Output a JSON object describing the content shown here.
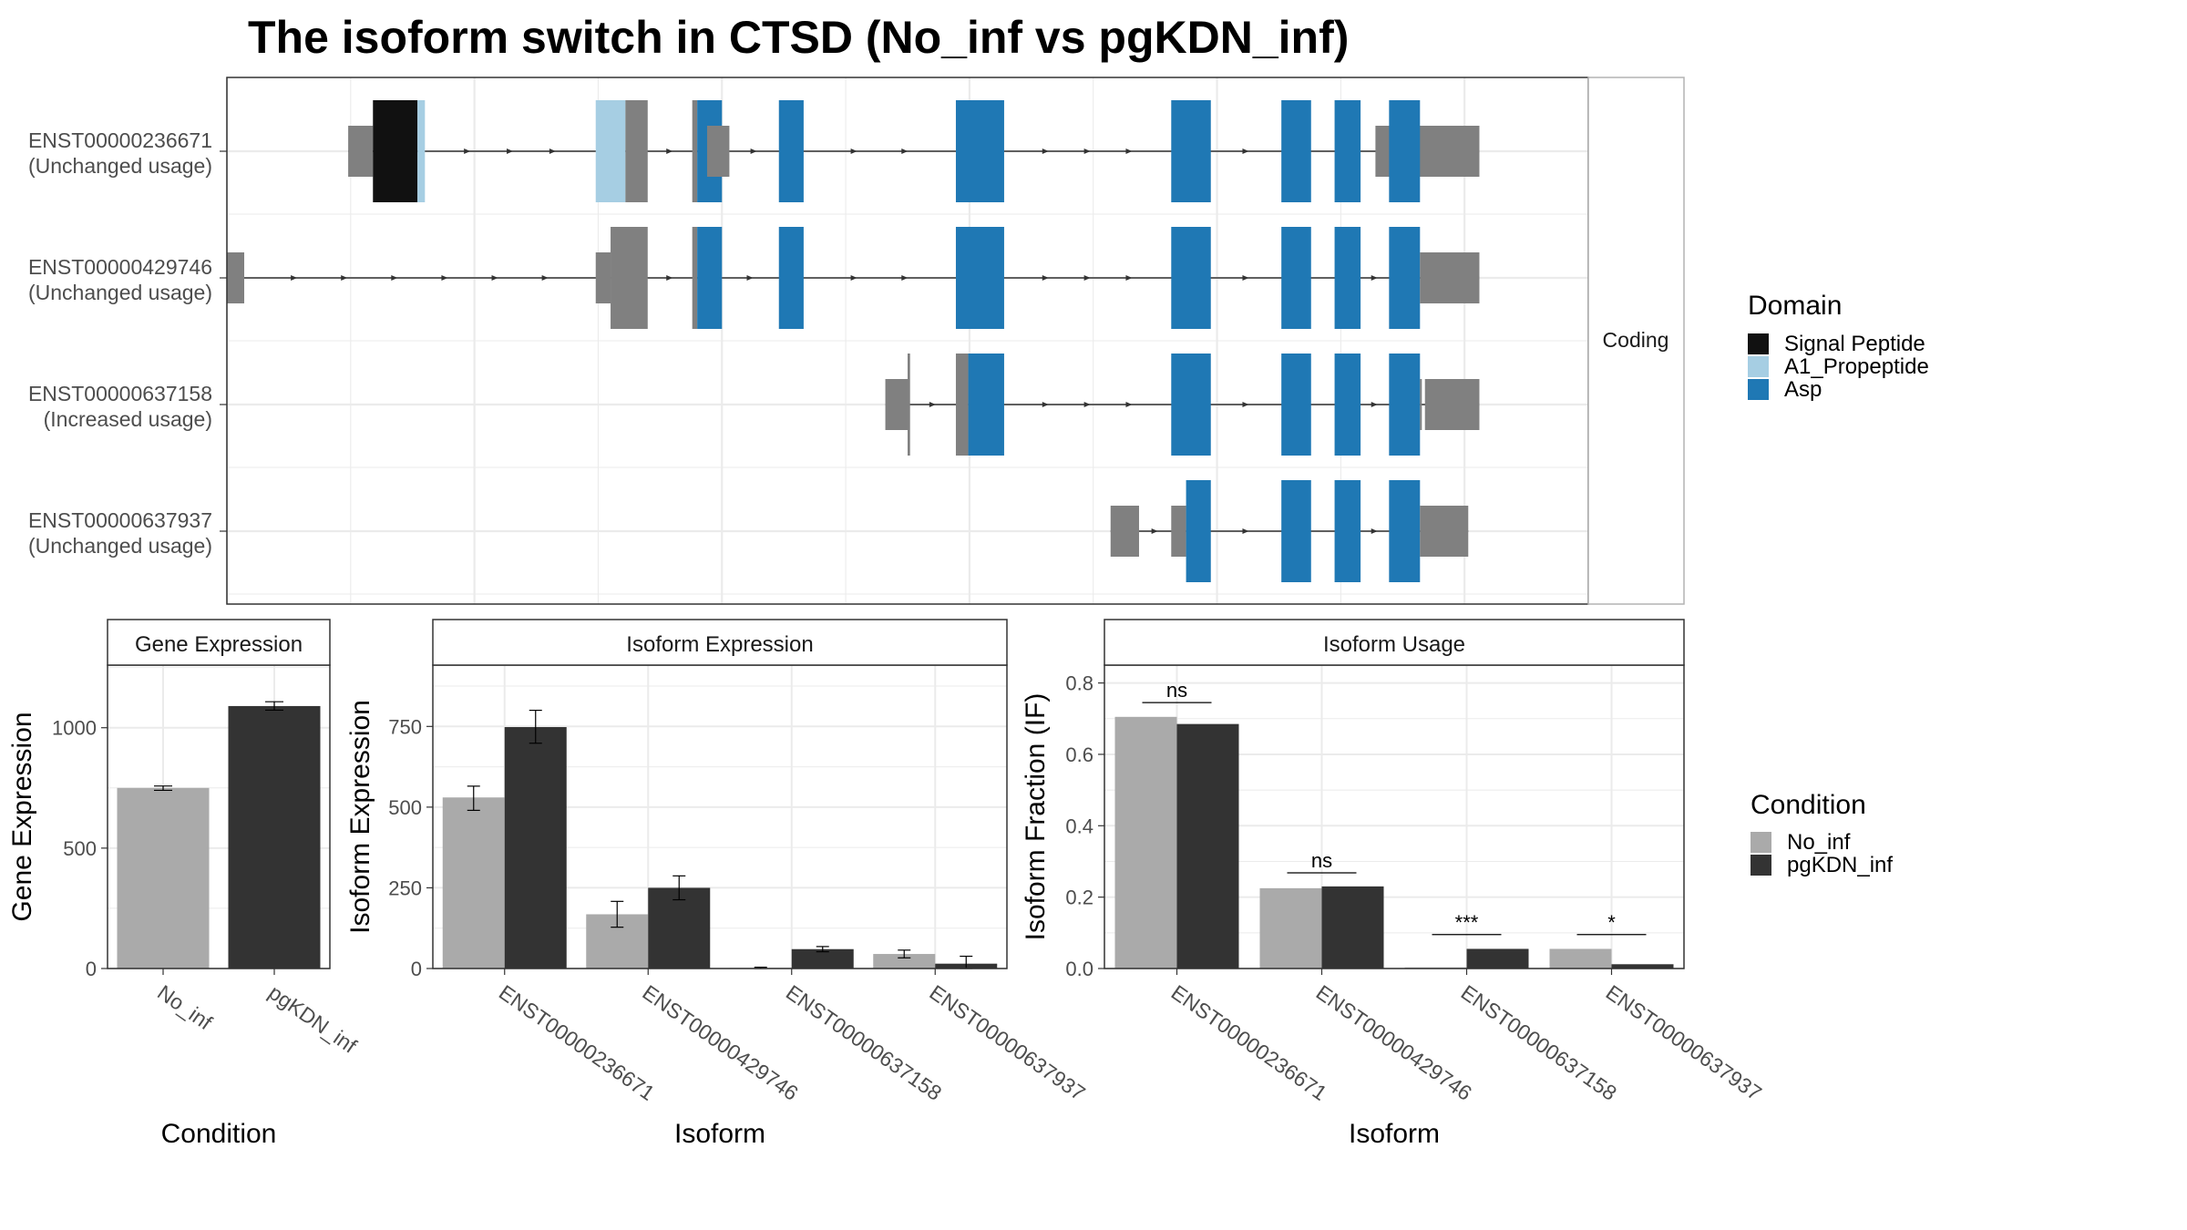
{
  "title": "The isoform switch in CTSD (No_inf vs pgKDN_inf)",
  "colors": {
    "utr": "#808080",
    "no_inf": "#aaaaaa",
    "pgkdn_inf": "#333333",
    "panel_border": "#333333",
    "strip_border": "#b3b3b3",
    "grid": "#ebebeb"
  },
  "structure": {
    "strip_label": "Coding",
    "xlim": [
      0,
      1100
    ],
    "transcripts": [
      {
        "id": "ENST00000236671",
        "status": "(Unchanged usage)",
        "utr": [
          [
            98,
            118
          ],
          [
            388,
            406
          ],
          [
            928,
            1012
          ]
        ],
        "coding": [
          [
            118,
            154,
            "Signal Peptide"
          ],
          [
            154,
            160,
            "A1_Propeptide"
          ],
          [
            298,
            322,
            "A1_Propeptide"
          ],
          [
            322,
            340,
            "utr"
          ],
          [
            376,
            380,
            "utr"
          ],
          [
            380,
            400,
            "Asp"
          ],
          [
            446,
            466,
            "Asp"
          ],
          [
            589,
            628,
            "Asp"
          ],
          [
            763,
            795,
            "Asp"
          ],
          [
            852,
            876,
            "Asp"
          ],
          [
            895,
            916,
            "Asp"
          ],
          [
            939,
            964,
            "Asp"
          ]
        ]
      },
      {
        "id": "ENST00000429746",
        "status": "(Unchanged usage)",
        "utr": [
          [
            0,
            14
          ],
          [
            298,
            310
          ],
          [
            964,
            1012
          ]
        ],
        "coding": [
          [
            310,
            340,
            "utr"
          ],
          [
            376,
            380,
            "utr"
          ],
          [
            380,
            400,
            "Asp"
          ],
          [
            446,
            466,
            "Asp"
          ],
          [
            589,
            628,
            "Asp"
          ],
          [
            763,
            795,
            "Asp"
          ],
          [
            852,
            876,
            "Asp"
          ],
          [
            895,
            916,
            "Asp"
          ],
          [
            939,
            964,
            "Asp"
          ]
        ]
      },
      {
        "id": "ENST00000637158",
        "status": "(Increased usage)",
        "utr": [
          [
            532,
            550
          ],
          [
            964,
            965
          ],
          [
            968,
            1012
          ]
        ],
        "coding": [
          [
            550,
            552,
            "utr"
          ],
          [
            589,
            599,
            "utr"
          ],
          [
            599,
            628,
            "Asp"
          ],
          [
            763,
            795,
            "Asp"
          ],
          [
            852,
            876,
            "Asp"
          ],
          [
            895,
            916,
            "Asp"
          ],
          [
            939,
            964,
            "Asp"
          ]
        ]
      },
      {
        "id": "ENST00000637937",
        "status": "(Unchanged usage)",
        "utr": [
          [
            714,
            737
          ],
          [
            763,
            775
          ],
          [
            964,
            1003
          ]
        ],
        "coding": [
          [
            775,
            795,
            "Asp"
          ],
          [
            852,
            876,
            "Asp"
          ],
          [
            895,
            916,
            "Asp"
          ],
          [
            939,
            964,
            "Asp"
          ]
        ]
      }
    ]
  },
  "domain_legend": {
    "title": "Domain",
    "items": [
      {
        "name": "Signal Peptide",
        "color": "#111111"
      },
      {
        "name": "A1_Propeptide",
        "color": "#a6cee3"
      },
      {
        "name": "Asp",
        "color": "#1f78b4"
      }
    ]
  },
  "condition_legend": {
    "title": "Condition",
    "items": [
      {
        "name": "No_inf",
        "color": "#aaaaaa"
      },
      {
        "name": "pgKDN_inf",
        "color": "#333333"
      }
    ]
  },
  "chart_data": [
    {
      "type": "bar",
      "strip": "Gene Expression",
      "xlabel": "Condition",
      "ylabel": "Gene Expression",
      "ylim": [
        0,
        1260
      ],
      "yticks": [
        0,
        500,
        1000
      ],
      "categories": [
        "No_inf",
        "pgKDN_inf"
      ],
      "values": [
        750,
        1090
      ],
      "errors": [
        [
          740,
          758
        ],
        [
          1073,
          1108
        ]
      ]
    },
    {
      "type": "bar",
      "strip": "Isoform Expression",
      "xlabel": "Isoform",
      "ylabel": "Isoform Expression",
      "ylim": [
        0,
        940
      ],
      "yticks": [
        0,
        250,
        500,
        750
      ],
      "categories": [
        "ENST00000236671",
        "ENST00000429746",
        "ENST00000637158",
        "ENST00000637937"
      ],
      "series": [
        {
          "name": "No_inf",
          "values": [
            530,
            168,
            2,
            45
          ],
          "errors": [
            [
              490,
              565
            ],
            [
              128,
              208
            ],
            [
              0,
              4
            ],
            [
              33,
              57
            ]
          ]
        },
        {
          "name": "pgKDN_inf",
          "values": [
            748,
            250,
            60,
            15
          ],
          "errors": [
            [
              698,
              800
            ],
            [
              213,
              287
            ],
            [
              52,
              68
            ],
            [
              0,
              38
            ]
          ]
        }
      ]
    },
    {
      "type": "bar",
      "strip": "Isoform Usage",
      "xlabel": "Isoform",
      "ylabel": "Isoform Fraction (IF)",
      "ylim": [
        0,
        0.85
      ],
      "yticks": [
        0.0,
        0.2,
        0.4,
        0.6,
        0.8
      ],
      "tick_labels": [
        "0.0",
        "0.2",
        "0.4",
        "0.6",
        "0.8"
      ],
      "categories": [
        "ENST00000236671",
        "ENST00000429746",
        "ENST00000637158",
        "ENST00000637937"
      ],
      "series": [
        {
          "name": "No_inf",
          "values": [
            0.705,
            0.225,
            0.003,
            0.055
          ]
        },
        {
          "name": "pgKDN_inf",
          "values": [
            0.685,
            0.23,
            0.055,
            0.012
          ]
        }
      ],
      "significance": [
        {
          "label": "ns",
          "y": 0.745
        },
        {
          "label": "ns",
          "y": 0.268
        },
        {
          "label": "***",
          "y": 0.095
        },
        {
          "label": "*",
          "y": 0.095
        }
      ]
    }
  ]
}
